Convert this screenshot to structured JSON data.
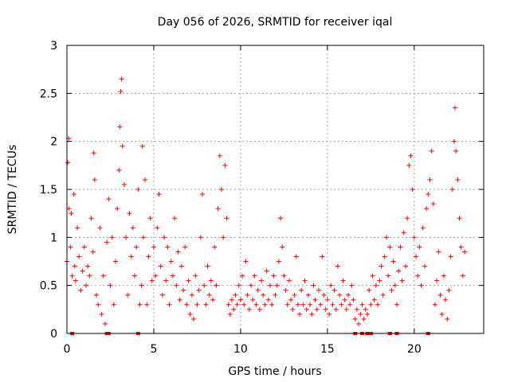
{
  "chart_data": {
    "type": "scatter",
    "title": "Day 056 of 2026, SRMTID for receiver iqal",
    "xlabel": "GPS time / hours",
    "ylabel": "SRMTID / TECUs",
    "xlim": [
      0,
      24
    ],
    "ylim": [
      0,
      3
    ],
    "x_ticks": [
      0,
      5,
      10,
      15,
      20
    ],
    "x_tick_labels": [
      "0",
      "5",
      "10",
      "15",
      "20"
    ],
    "y_ticks": [
      0,
      0.5,
      1,
      1.5,
      2,
      2.5,
      3
    ],
    "y_tick_labels": [
      "0",
      "0.5",
      "1",
      "1.5",
      "2",
      "2.5",
      "3"
    ],
    "grid": true,
    "marker": "+",
    "series": [
      {
        "name": "SRMTID",
        "color": "#ff0000",
        "points": [
          [
            0.0,
            0.75
          ],
          [
            0.05,
            1.78
          ],
          [
            0.1,
            2.03
          ],
          [
            0.12,
            1.3
          ],
          [
            0.2,
            0.9
          ],
          [
            0.25,
            1.25
          ],
          [
            0.3,
            0.6
          ],
          [
            0.4,
            1.45
          ],
          [
            0.45,
            0.7
          ],
          [
            0.5,
            0.55
          ],
          [
            0.6,
            1.1
          ],
          [
            0.7,
            0.8
          ],
          [
            0.8,
            0.45
          ],
          [
            0.9,
            0.65
          ],
          [
            1.0,
            0.9
          ],
          [
            1.1,
            0.5
          ],
          [
            1.2,
            0.7
          ],
          [
            1.3,
            0.6
          ],
          [
            1.4,
            1.2
          ],
          [
            1.5,
            0.85
          ],
          [
            1.55,
            1.88
          ],
          [
            1.6,
            1.6
          ],
          [
            1.7,
            0.4
          ],
          [
            1.8,
            0.3
          ],
          [
            1.9,
            1.1
          ],
          [
            2.0,
            0.2
          ],
          [
            2.1,
            0.6
          ],
          [
            2.2,
            0.1
          ],
          [
            2.3,
            0.95
          ],
          [
            2.4,
            1.4
          ],
          [
            2.5,
            0.5
          ],
          [
            2.6,
            1.0
          ],
          [
            2.7,
            0.3
          ],
          [
            2.8,
            0.75
          ],
          [
            2.9,
            1.3
          ],
          [
            3.0,
            1.7
          ],
          [
            3.05,
            2.15
          ],
          [
            3.1,
            2.52
          ],
          [
            3.15,
            2.65
          ],
          [
            3.2,
            1.95
          ],
          [
            3.3,
            1.55
          ],
          [
            3.4,
            1.0
          ],
          [
            3.5,
            0.4
          ],
          [
            3.6,
            1.25
          ],
          [
            3.7,
            0.8
          ],
          [
            3.8,
            1.1
          ],
          [
            3.9,
            0.6
          ],
          [
            4.0,
            0.9
          ],
          [
            4.1,
            1.5
          ],
          [
            4.2,
            0.3
          ],
          [
            4.3,
            0.5
          ],
          [
            4.35,
            1.95
          ],
          [
            4.4,
            1.0
          ],
          [
            4.5,
            1.6
          ],
          [
            4.6,
            0.3
          ],
          [
            4.7,
            0.8
          ],
          [
            4.8,
            1.2
          ],
          [
            4.9,
            0.55
          ],
          [
            5.0,
            0.9
          ],
          [
            5.1,
            0.6
          ],
          [
            5.2,
            1.1
          ],
          [
            5.3,
            1.45
          ],
          [
            5.4,
            0.7
          ],
          [
            5.5,
            0.4
          ],
          [
            5.6,
            1.0
          ],
          [
            5.7,
            0.55
          ],
          [
            5.8,
            0.9
          ],
          [
            5.9,
            0.3
          ],
          [
            6.0,
            0.75
          ],
          [
            6.1,
            0.6
          ],
          [
            6.2,
            1.2
          ],
          [
            6.3,
            0.5
          ],
          [
            6.4,
            0.85
          ],
          [
            6.5,
            0.35
          ],
          [
            6.6,
            0.7
          ],
          [
            6.7,
            0.45
          ],
          [
            6.8,
            0.9
          ],
          [
            6.9,
            0.3
          ],
          [
            7.0,
            0.55
          ],
          [
            7.1,
            0.2
          ],
          [
            7.2,
            0.4
          ],
          [
            7.3,
            0.15
          ],
          [
            7.4,
            0.6
          ],
          [
            7.5,
            0.3
          ],
          [
            7.6,
            0.45
          ],
          [
            7.7,
            1.0
          ],
          [
            7.8,
            1.45
          ],
          [
            7.9,
            0.5
          ],
          [
            8.0,
            0.3
          ],
          [
            8.1,
            0.7
          ],
          [
            8.2,
            0.4
          ],
          [
            8.3,
            0.55
          ],
          [
            8.4,
            0.35
          ],
          [
            8.5,
            0.9
          ],
          [
            8.6,
            0.5
          ],
          [
            8.7,
            1.3
          ],
          [
            8.8,
            1.85
          ],
          [
            8.9,
            1.5
          ],
          [
            9.0,
            1.0
          ],
          [
            9.1,
            1.75
          ],
          [
            9.2,
            1.2
          ],
          [
            9.3,
            0.3
          ],
          [
            9.4,
            0.2
          ],
          [
            9.5,
            0.35
          ],
          [
            9.6,
            0.25
          ],
          [
            9.7,
            0.4
          ],
          [
            9.8,
            0.3
          ],
          [
            9.9,
            0.5
          ],
          [
            10.0,
            0.35
          ],
          [
            10.1,
            0.6
          ],
          [
            10.2,
            0.3
          ],
          [
            10.3,
            0.75
          ],
          [
            10.4,
            0.4
          ],
          [
            10.5,
            0.25
          ],
          [
            10.6,
            0.5
          ],
          [
            10.7,
            0.35
          ],
          [
            10.8,
            0.6
          ],
          [
            10.9,
            0.3
          ],
          [
            11.0,
            0.45
          ],
          [
            11.1,
            0.25
          ],
          [
            11.2,
            0.55
          ],
          [
            11.3,
            0.4
          ],
          [
            11.4,
            0.3
          ],
          [
            11.5,
            0.65
          ],
          [
            11.6,
            0.35
          ],
          [
            11.7,
            0.5
          ],
          [
            11.8,
            0.3
          ],
          [
            11.9,
            0.6
          ],
          [
            12.0,
            0.4
          ],
          [
            12.1,
            0.5
          ],
          [
            12.2,
            0.75
          ],
          [
            12.3,
            1.2
          ],
          [
            12.4,
            0.9
          ],
          [
            12.5,
            0.6
          ],
          [
            12.6,
            0.45
          ],
          [
            12.7,
            0.3
          ],
          [
            12.8,
            0.55
          ],
          [
            12.9,
            0.35
          ],
          [
            13.0,
            0.25
          ],
          [
            13.1,
            0.4
          ],
          [
            13.2,
            0.8
          ],
          [
            13.3,
            0.3
          ],
          [
            13.4,
            0.2
          ],
          [
            13.5,
            0.45
          ],
          [
            13.6,
            0.3
          ],
          [
            13.7,
            0.55
          ],
          [
            13.8,
            0.25
          ],
          [
            13.9,
            0.4
          ],
          [
            14.0,
            0.3
          ],
          [
            14.1,
            0.2
          ],
          [
            14.2,
            0.5
          ],
          [
            14.3,
            0.35
          ],
          [
            14.4,
            0.25
          ],
          [
            14.5,
            0.45
          ],
          [
            14.6,
            0.3
          ],
          [
            14.7,
            0.8
          ],
          [
            14.8,
            0.4
          ],
          [
            14.9,
            0.25
          ],
          [
            15.0,
            0.35
          ],
          [
            15.1,
            0.2
          ],
          [
            15.2,
            0.5
          ],
          [
            15.3,
            0.3
          ],
          [
            15.4,
            0.45
          ],
          [
            15.5,
            0.25
          ],
          [
            15.6,
            0.7
          ],
          [
            15.7,
            0.4
          ],
          [
            15.8,
            0.3
          ],
          [
            15.9,
            0.55
          ],
          [
            16.0,
            0.35
          ],
          [
            16.1,
            0.25
          ],
          [
            16.2,
            0.4
          ],
          [
            16.3,
            0.3
          ],
          [
            16.4,
            0.5
          ],
          [
            16.5,
            0.35
          ],
          [
            16.6,
            0.15
          ],
          [
            16.7,
            0.25
          ],
          [
            16.8,
            0.1
          ],
          [
            16.9,
            0.2
          ],
          [
            17.0,
            0.3
          ],
          [
            17.1,
            0.15
          ],
          [
            17.2,
            0.25
          ],
          [
            17.3,
            0.2
          ],
          [
            17.4,
            0.45
          ],
          [
            17.5,
            0.3
          ],
          [
            17.6,
            0.6
          ],
          [
            17.7,
            0.35
          ],
          [
            17.8,
            0.5
          ],
          [
            17.9,
            0.3
          ],
          [
            18.0,
            0.55
          ],
          [
            18.1,
            0.7
          ],
          [
            18.2,
            0.4
          ],
          [
            18.3,
            0.8
          ],
          [
            18.4,
            1.0
          ],
          [
            18.5,
            0.6
          ],
          [
            18.6,
            0.9
          ],
          [
            18.7,
            0.45
          ],
          [
            18.8,
            0.75
          ],
          [
            18.9,
            0.5
          ],
          [
            19.0,
            0.3
          ],
          [
            19.1,
            0.65
          ],
          [
            19.2,
            0.9
          ],
          [
            19.3,
            0.55
          ],
          [
            19.4,
            1.05
          ],
          [
            19.5,
            0.7
          ],
          [
            19.6,
            1.2
          ],
          [
            19.7,
            1.75
          ],
          [
            19.8,
            1.85
          ],
          [
            19.9,
            1.5
          ],
          [
            20.0,
            1.0
          ],
          [
            20.1,
            0.8
          ],
          [
            20.2,
            0.6
          ],
          [
            20.3,
            0.9
          ],
          [
            20.4,
            0.5
          ],
          [
            20.5,
            1.1
          ],
          [
            20.6,
            0.7
          ],
          [
            20.7,
            1.3
          ],
          [
            20.8,
            1.45
          ],
          [
            20.9,
            1.6
          ],
          [
            21.0,
            1.9
          ],
          [
            21.1,
            1.35
          ],
          [
            21.2,
            0.3
          ],
          [
            21.3,
            0.55
          ],
          [
            21.4,
            0.85
          ],
          [
            21.5,
            0.4
          ],
          [
            21.6,
            0.2
          ],
          [
            21.7,
            0.6
          ],
          [
            21.8,
            0.35
          ],
          [
            21.9,
            0.15
          ],
          [
            22.0,
            0.45
          ],
          [
            22.1,
            0.8
          ],
          [
            22.2,
            1.5
          ],
          [
            22.3,
            2.0
          ],
          [
            22.35,
            2.35
          ],
          [
            22.4,
            1.9
          ],
          [
            22.5,
            1.6
          ],
          [
            22.6,
            1.2
          ],
          [
            22.7,
            0.9
          ],
          [
            22.8,
            0.6
          ],
          [
            22.9,
            0.85
          ]
        ]
      }
    ],
    "zero_markers_x": [
      0.3,
      2.3,
      2.4,
      4.1,
      16.6,
      17.0,
      17.3,
      17.5,
      18.6,
      19.0,
      20.8
    ]
  }
}
